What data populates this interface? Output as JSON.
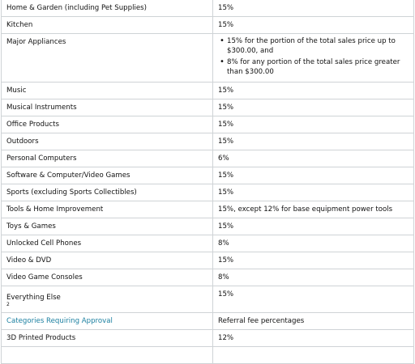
{
  "table": {
    "rows": [
      {
        "category": "Home & Garden (including Pet Supplies)",
        "fee": "15%"
      },
      {
        "category": "Kitchen",
        "fee": "15%"
      },
      {
        "category": "Major Appliances",
        "fee_list": [
          "15% for the portion of the total sales price up to $300.00, and",
          "8% for any portion of the total sales price greater than $300.00"
        ]
      },
      {
        "category": "Music",
        "fee": "15%"
      },
      {
        "category": "Musical Instruments",
        "fee": "15%"
      },
      {
        "category": "Office Products",
        "fee": "15%"
      },
      {
        "category": "Outdoors",
        "fee": "15%"
      },
      {
        "category": "Personal Computers",
        "fee": "6%"
      },
      {
        "category": "Software & Computer/Video Games",
        "fee": "15%"
      },
      {
        "category": "Sports (excluding Sports Collectibles)",
        "fee": "15%"
      },
      {
        "category": "Tools & Home Improvement",
        "fee": "15%, except 12% for base equipment power tools"
      },
      {
        "category": "Toys & Games",
        "fee": "15%"
      },
      {
        "category": "Unlocked Cell Phones",
        "fee": "8%"
      },
      {
        "category": "Video & DVD",
        "fee": "15%"
      },
      {
        "category": "Video Game Consoles",
        "fee": "8%"
      },
      {
        "category": "Everything Else",
        "category_sup": "2",
        "fee": "15%"
      },
      {
        "category": "Categories Requiring Approval",
        "link": true,
        "fee": "Referral fee percentages"
      },
      {
        "category": "3D Printed Products",
        "fee": "12%"
      },
      {
        "category": "",
        "fee": ""
      }
    ],
    "colors": {
      "border": "#cfd3d6",
      "link": "#1a7fa0",
      "text": "#111111"
    }
  }
}
